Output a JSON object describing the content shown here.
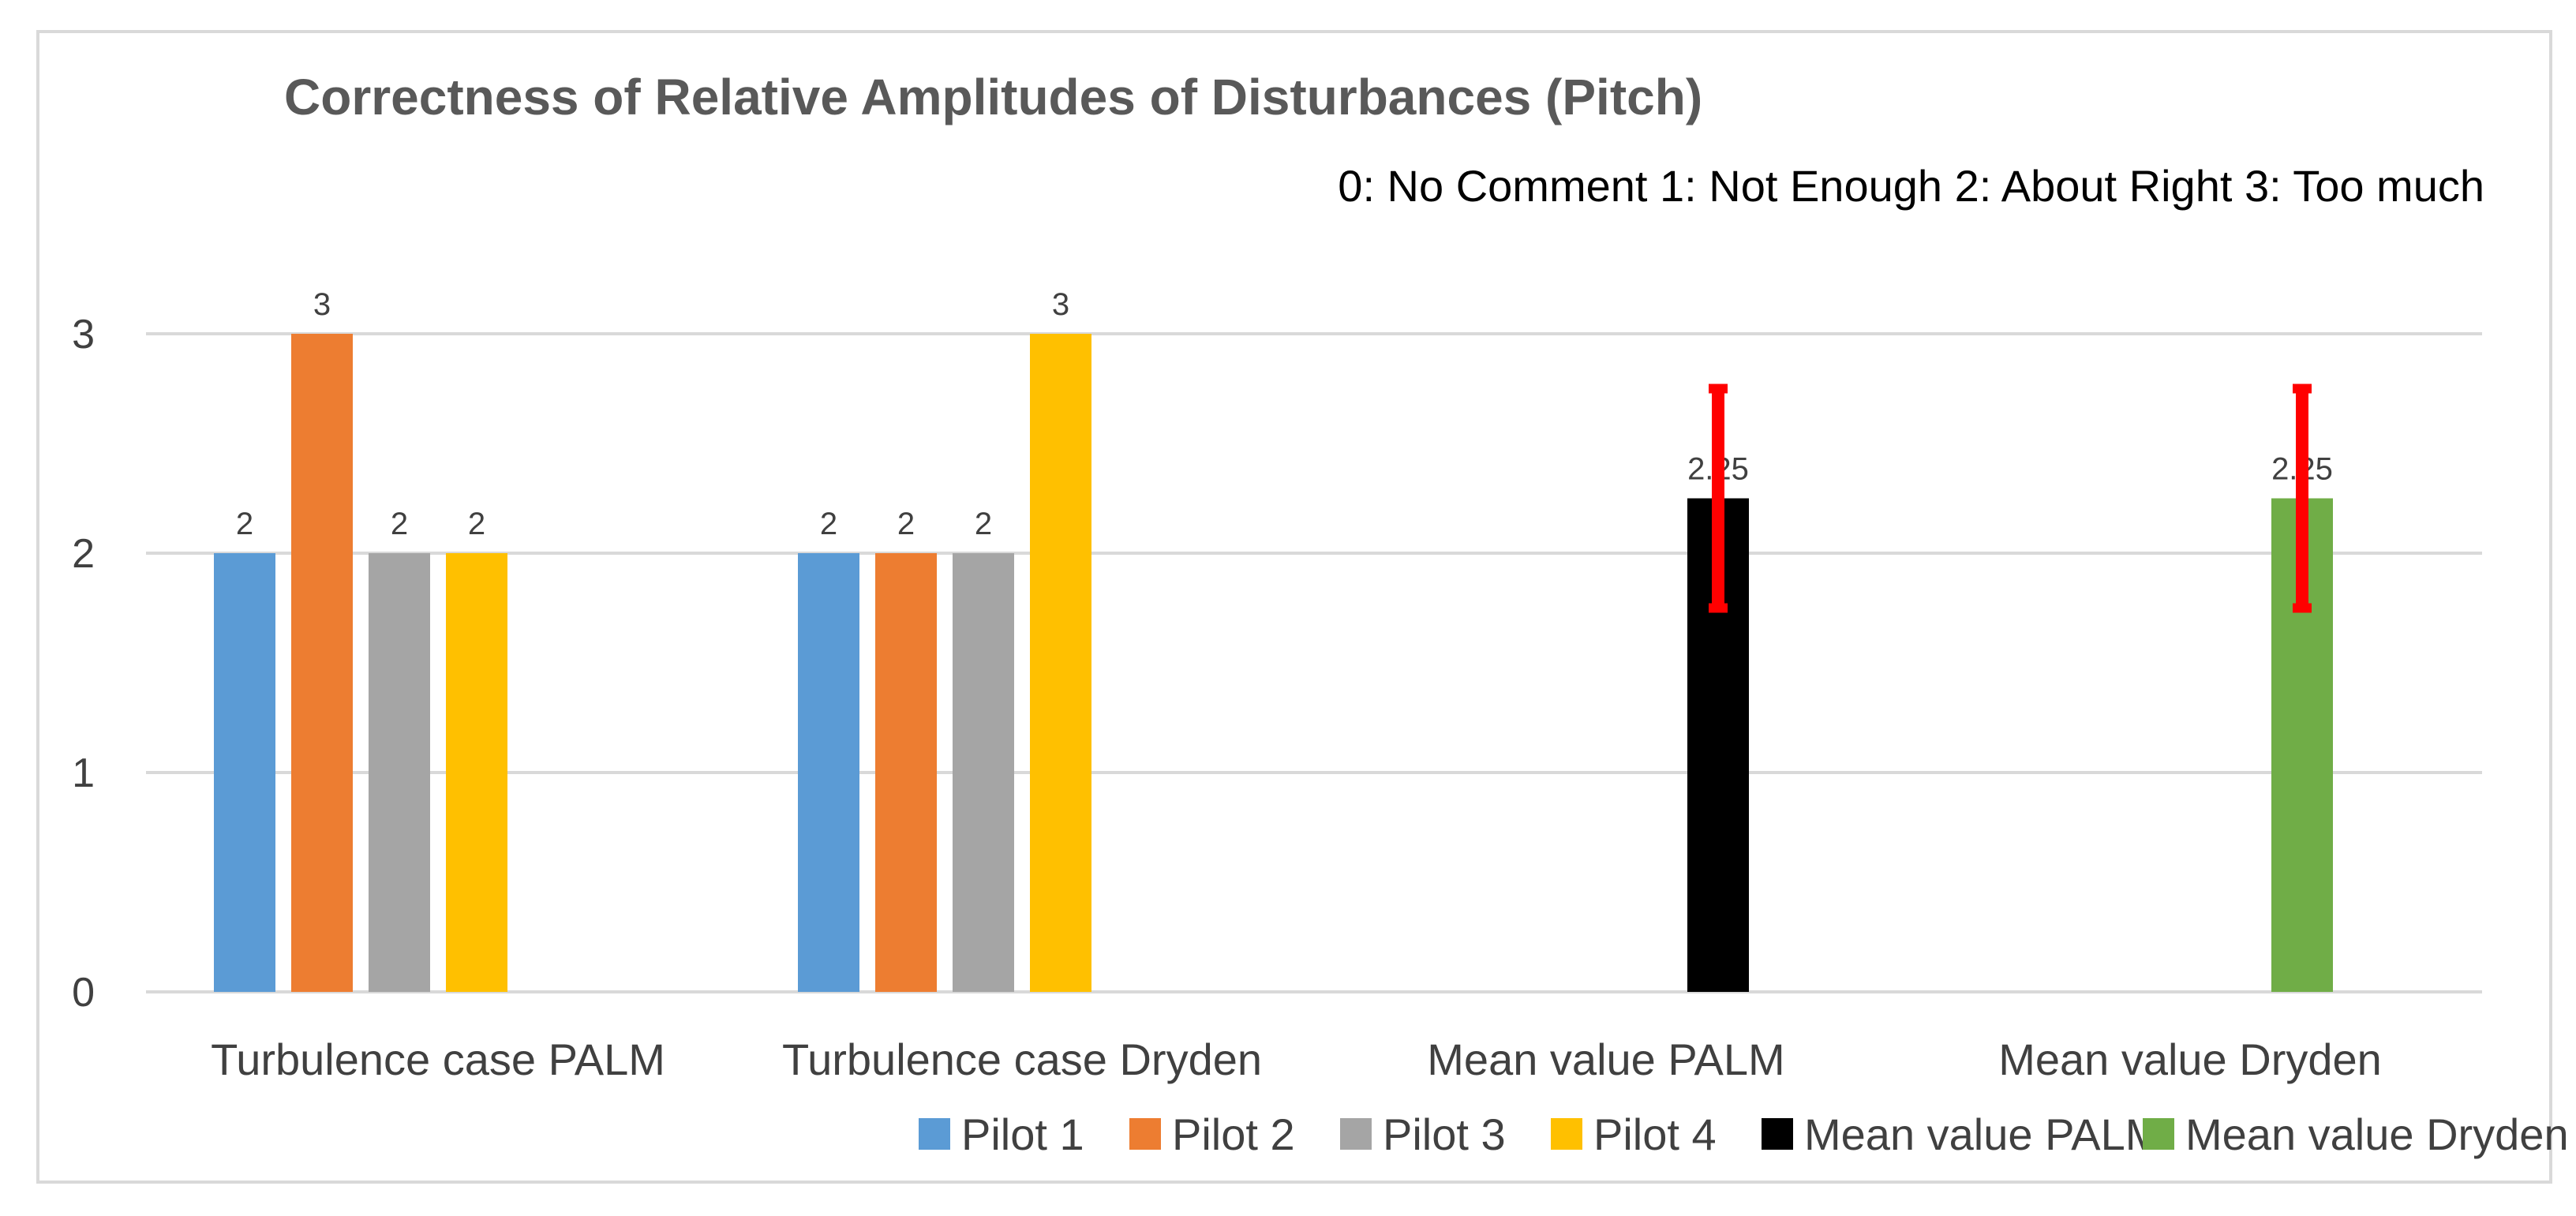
{
  "chart_data": {
    "type": "bar",
    "title": "Correctness of Relative Amplitudes of Disturbances (Pitch)",
    "subtitle": "0:  No Comment  1: Not Enough 2: About Right 3: Too much",
    "xlabel": "",
    "ylabel": "",
    "ylim": [
      0,
      3
    ],
    "yticks": [
      "0",
      "1",
      "2",
      "3"
    ],
    "categories": [
      "Turbulence case PALM",
      "Turbulence case Dryden",
      "Mean value PALM",
      "Mean value Dryden"
    ],
    "series": [
      {
        "name": "Pilot 1",
        "color": "#5B9BD5",
        "values": [
          2,
          2,
          null,
          null
        ],
        "labels": [
          "2",
          "2",
          "",
          ""
        ]
      },
      {
        "name": "Pilot 2",
        "color": "#ED7D31",
        "values": [
          3,
          2,
          null,
          null
        ],
        "labels": [
          "3",
          "2",
          "",
          ""
        ]
      },
      {
        "name": "Pilot 3",
        "color": "#A5A5A5",
        "values": [
          2,
          2,
          null,
          null
        ],
        "labels": [
          "2",
          "2",
          "",
          ""
        ]
      },
      {
        "name": "Pilot 4",
        "color": "#FFC000",
        "values": [
          2,
          3,
          null,
          null
        ],
        "labels": [
          "2",
          "3",
          "",
          ""
        ]
      },
      {
        "name": "Mean value PALM",
        "color": "#000000",
        "values": [
          null,
          null,
          2.25,
          null
        ],
        "labels": [
          "",
          "",
          "2.25",
          ""
        ]
      },
      {
        "name": "Mean value Dryden",
        "color": "#70AD47",
        "values": [
          null,
          null,
          null,
          2.25
        ],
        "labels": [
          "",
          "",
          "",
          "2.25"
        ]
      }
    ],
    "error_bars": {
      "color": "#FF0000",
      "items": [
        {
          "series": "Mean value PALM",
          "category": "Mean value PALM",
          "low": 1.75,
          "high": 2.75
        },
        {
          "series": "Mean value Dryden",
          "category": "Mean value Dryden",
          "low": 1.75,
          "high": 2.75
        }
      ]
    },
    "grid": true,
    "legend_position": "bottom"
  },
  "colors": {
    "gridline": "#D9D9D9",
    "frame": "#D9D9D9"
  }
}
